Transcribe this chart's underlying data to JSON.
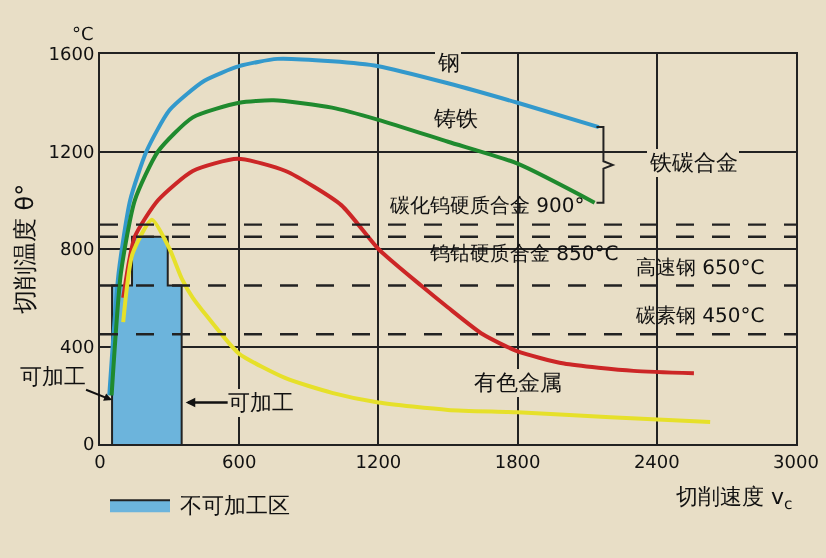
{
  "chart_data": {
    "type": "line",
    "xlabel": "切削速度 v$_{c}$",
    "ylabel": "切削温度 θ°",
    "xlim": [
      0,
      3000
    ],
    "xticks": [
      0,
      600,
      1200,
      1800,
      2400,
      3000
    ],
    "ylim": [
      0,
      1600
    ],
    "yticks": [
      0,
      400,
      800,
      1200,
      1600
    ],
    "grid": true,
    "legend": "bottom left",
    "series": [
      {
        "type": "area",
        "name": "不可加工区",
        "color": "#6cb4dc",
        "x": [
          52,
          52,
          138,
          138,
          292,
          292,
          352,
          352
        ],
        "values": [
          0,
          650,
          650,
          850,
          850,
          650,
          650,
          0
        ]
      },
      {
        "color": "#3399cc",
        "x": [
          40,
          80,
          130,
          200,
          300,
          450,
          600,
          765,
          1000,
          1200,
          1500,
          1800,
          2150
        ],
        "values": [
          200,
          700,
          1000,
          1200,
          1370,
          1490,
          1550,
          1580,
          1570,
          1550,
          1480,
          1400,
          1300
        ]
      },
      {
        "color": "#1f8a2e",
        "x": [
          50,
          90,
          150,
          250,
          400,
          600,
          748,
          1000,
          1200,
          1500,
          1800,
          2132
        ],
        "values": [
          200,
          700,
          1000,
          1200,
          1340,
          1400,
          1410,
          1380,
          1330,
          1240,
          1150,
          990
        ]
      },
      {
        "color": "#cc2626",
        "x": [
          100,
          150,
          250,
          400,
          593,
          800,
          1040,
          1200,
          1384,
          1500,
          1650,
          1800,
          2000,
          2300,
          2560
        ],
        "values": [
          600,
          850,
          1000,
          1120,
          1170,
          1120,
          980,
          800,
          650,
          560,
          450,
          380,
          330,
          300,
          290
        ]
      },
      {
        "color": "#e6e02a",
        "x": [
          100,
          140,
          224,
          300,
          352,
          400,
          524,
          600,
          800,
          1000,
          1200,
          1500,
          1800,
          2200,
          2630
        ],
        "values": [
          500,
          780,
          920,
          800,
          680,
          600,
          450,
          370,
          270,
          210,
          170,
          140,
          130,
          110,
          90
        ]
      }
    ],
    "ref_lines": [
      {
        "axis": "y",
        "value": 900,
        "label": "碳化钨硬质合金 900°",
        "line_style": "dashed"
      },
      {
        "axis": "y",
        "value": 850,
        "label": "钨钴硬质合金 850°C",
        "line_style": "dashed"
      },
      {
        "axis": "y",
        "value": 650,
        "label": "高速钢 650°C",
        "line_style": "dashed"
      },
      {
        "axis": "y",
        "value": 450,
        "label": "碳素钢 450°C",
        "line_style": "dashed"
      }
    ],
    "annotations": [
      "°C",
      "钢",
      "铸铁",
      "铁碳合金",
      "有色金属",
      {
        "text": "可加工",
        "x": 52,
        "y": 180
      },
      {
        "text": "可加工",
        "x": 352,
        "y": 170
      }
    ]
  }
}
